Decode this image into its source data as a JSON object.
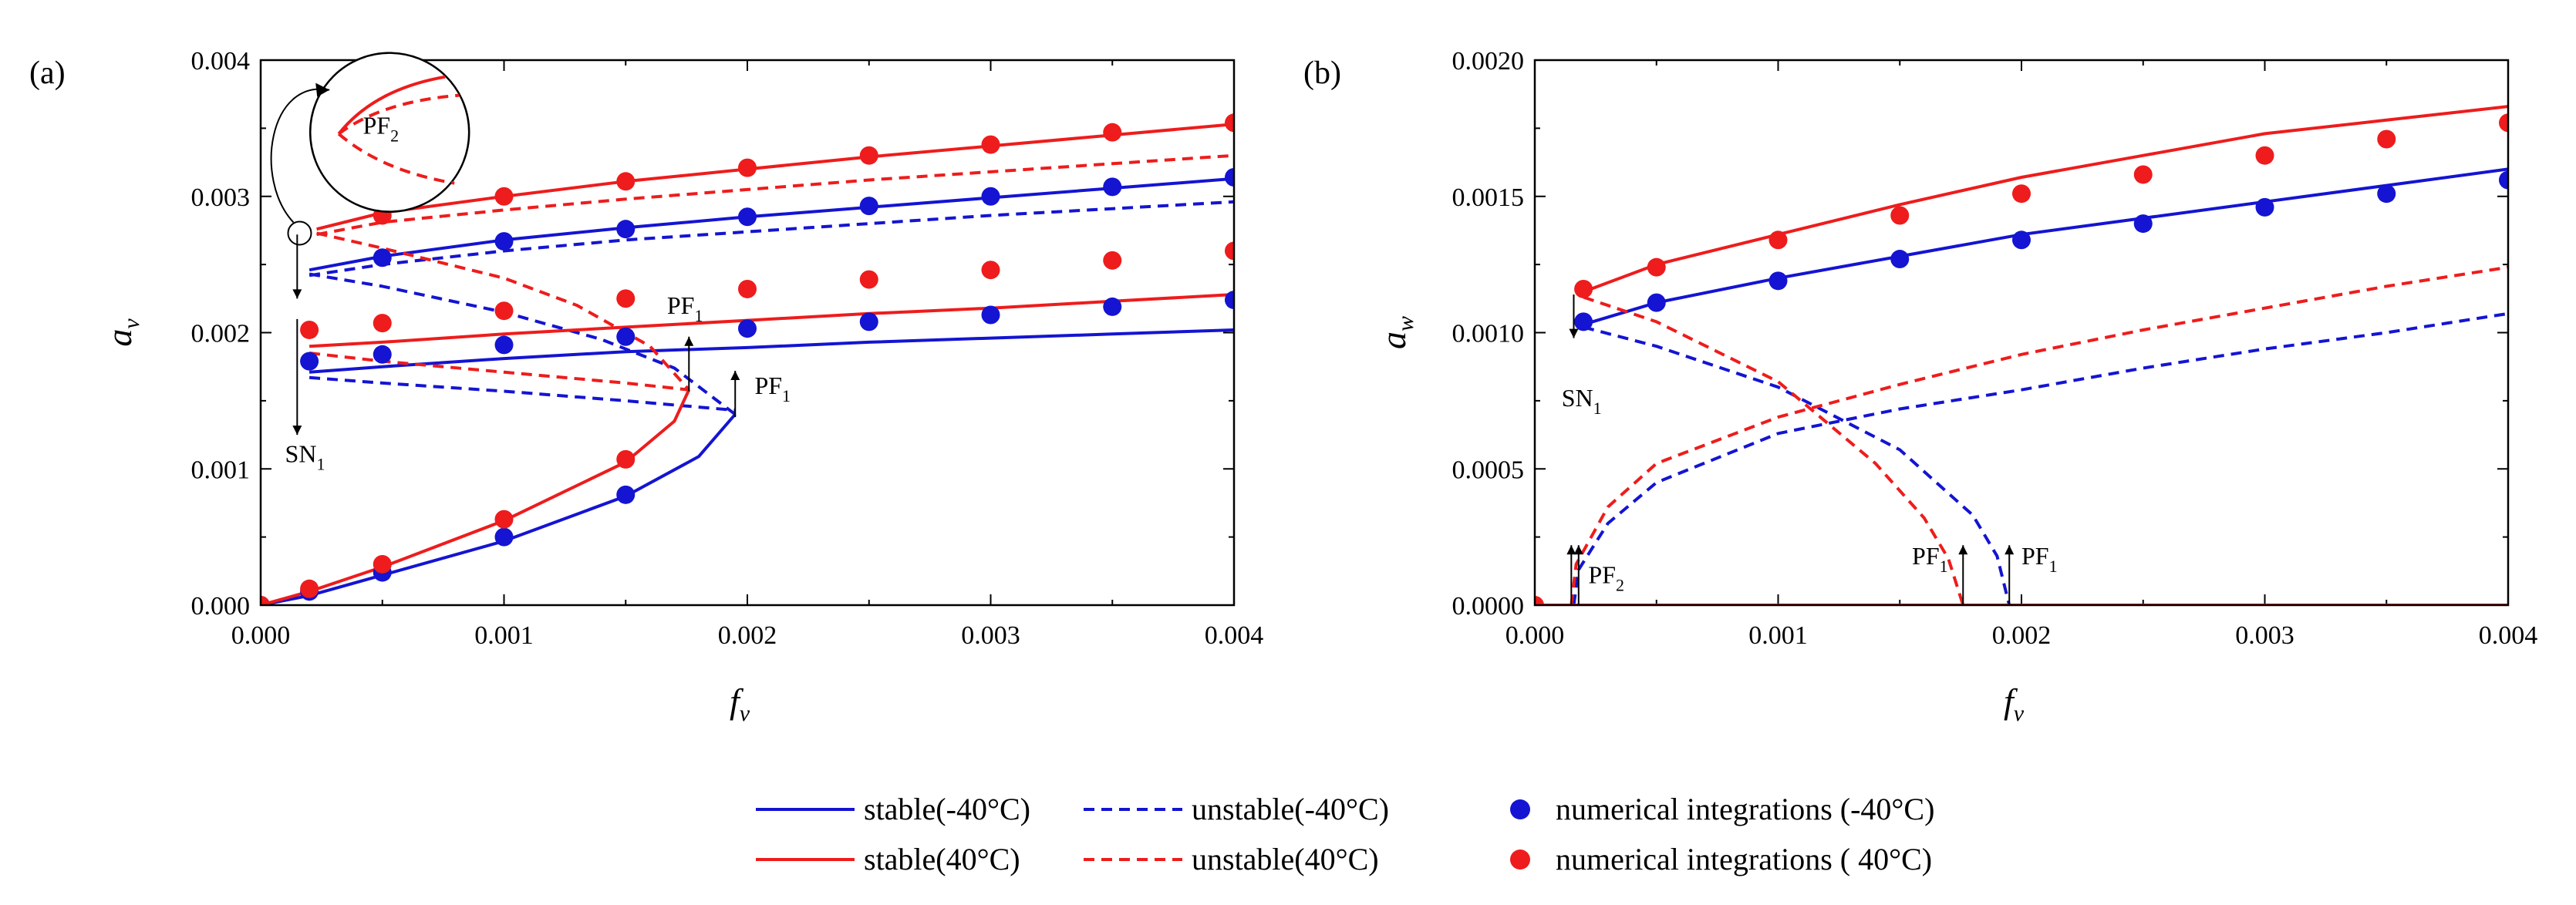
{
  "figure": {
    "colors": {
      "cold": "#1414d2",
      "hot": "#ee1c1c",
      "axis": "#000000"
    },
    "legend": {
      "items": [
        {
          "label": "stable(-40°C)",
          "kind": "solid",
          "color": "#1414d2"
        },
        {
          "label": "unstable(-40°C)",
          "kind": "dashed",
          "color": "#1414d2"
        },
        {
          "label": "numerical integrations (-40°C)",
          "kind": "marker",
          "color": "#1414d2"
        },
        {
          "label": "stable(40°C)",
          "kind": "solid",
          "color": "#ee1c1c"
        },
        {
          "label": "unstable(40°C)",
          "kind": "dashed",
          "color": "#ee1c1c"
        },
        {
          "label": "numerical integrations ( 40°C)",
          "kind": "marker",
          "color": "#ee1c1c"
        }
      ]
    }
  },
  "chart_data": [
    {
      "panel_label": "(a)",
      "type": "line",
      "xlabel": "f",
      "xlabel_sub": "v",
      "ylabel": "a",
      "ylabel_sub": "v",
      "xlim": [
        0,
        0.004
      ],
      "ylim": [
        0,
        0.004
      ],
      "x_ticks": [
        "0.000",
        "0.001",
        "0.002",
        "0.003",
        "0.004"
      ],
      "y_ticks": [
        "0.000",
        "0.001",
        "0.002",
        "0.003",
        "0.004"
      ],
      "annotations": [
        {
          "text": "PF",
          "sub": "2",
          "x": 0.00042,
          "y": 0.00346
        },
        {
          "text": "PF",
          "sub": "1",
          "x": 0.00167,
          "y": 0.00214
        },
        {
          "text": "PF",
          "sub": "1",
          "x": 0.00203,
          "y": 0.00155
        },
        {
          "text": "SN",
          "sub": "1",
          "x": 0.0001,
          "y": 0.00105
        }
      ],
      "series": [
        {
          "name": "stable(-40°C)",
          "temp": "cold",
          "style": "solid",
          "x": [
            0.0,
            0.0002,
            0.0005,
            0.001,
            0.0015,
            0.0018,
            0.00195
          ],
          "y": [
            0.0,
            7e-05,
            0.00022,
            0.00047,
            0.0008,
            0.00109,
            0.0014
          ]
        },
        {
          "name": "stable(-40°C)",
          "temp": "cold",
          "style": "solid",
          "x": [
            0.0002,
            0.0005,
            0.001,
            0.0015,
            0.002,
            0.0025,
            0.003,
            0.0035,
            0.004
          ],
          "y": [
            0.00171,
            0.00175,
            0.00181,
            0.00186,
            0.00189,
            0.00193,
            0.00196,
            0.00199,
            0.00202
          ]
        },
        {
          "name": "stable(-40°C)",
          "temp": "cold",
          "style": "solid",
          "x": [
            0.0002,
            0.0005,
            0.001,
            0.0015,
            0.002,
            0.0025,
            0.003,
            0.0035,
            0.004
          ],
          "y": [
            0.00246,
            0.00256,
            0.00268,
            0.00277,
            0.00285,
            0.00292,
            0.00299,
            0.00306,
            0.00313
          ]
        },
        {
          "name": "unstable(-40°C)",
          "temp": "cold",
          "style": "dashed",
          "x": [
            0.0002,
            0.0005,
            0.001,
            0.0015,
            0.002,
            0.0025,
            0.003,
            0.0035,
            0.004
          ],
          "y": [
            0.00242,
            0.0025,
            0.0026,
            0.00268,
            0.00274,
            0.0028,
            0.00286,
            0.00291,
            0.00296
          ]
        },
        {
          "name": "unstable(-40°C)",
          "temp": "cold",
          "style": "dashed",
          "x": [
            0.0002,
            0.0005,
            0.001,
            0.0014,
            0.0017,
            0.00195
          ],
          "y": [
            0.00243,
            0.00234,
            0.00215,
            0.00195,
            0.00174,
            0.0014
          ]
        },
        {
          "name": "unstable(-40°C)",
          "temp": "cold",
          "style": "dashed",
          "x": [
            0.0002,
            0.0005,
            0.001,
            0.0015,
            0.00195
          ],
          "y": [
            0.00167,
            0.00163,
            0.00157,
            0.0015,
            0.00143
          ]
        },
        {
          "name": "stable(40°C)",
          "temp": "hot",
          "style": "solid",
          "x": [
            0.0,
            0.0002,
            0.0005,
            0.001,
            0.0015,
            0.0017,
            0.00176
          ],
          "y": [
            0.0,
            0.0001,
            0.00028,
            0.00062,
            0.00105,
            0.00135,
            0.00158
          ]
        },
        {
          "name": "stable(40°C)",
          "temp": "hot",
          "style": "solid",
          "x": [
            0.0002,
            0.0005,
            0.001,
            0.0015,
            0.002,
            0.0025,
            0.003,
            0.0035,
            0.004
          ],
          "y": [
            0.0019,
            0.00193,
            0.00199,
            0.00204,
            0.00209,
            0.00214,
            0.00218,
            0.00223,
            0.00228
          ]
        },
        {
          "name": "stable(40°C)",
          "temp": "hot",
          "style": "solid",
          "x": [
            0.00023,
            0.0005,
            0.001,
            0.0015,
            0.002,
            0.0025,
            0.003,
            0.0035,
            0.004
          ],
          "y": [
            0.00276,
            0.00288,
            0.003,
            0.00311,
            0.0032,
            0.00329,
            0.00337,
            0.00345,
            0.00353
          ]
        },
        {
          "name": "unstable(40°C)",
          "temp": "hot",
          "style": "dashed",
          "x": [
            0.00023,
            0.0005,
            0.001,
            0.0015,
            0.002,
            0.0025,
            0.003,
            0.0035,
            0.004
          ],
          "y": [
            0.00272,
            0.00281,
            0.0029,
            0.00298,
            0.00305,
            0.00312,
            0.00318,
            0.00324,
            0.0033
          ]
        },
        {
          "name": "unstable(40°C)",
          "temp": "hot",
          "style": "dashed",
          "x": [
            0.00023,
            0.0005,
            0.001,
            0.0013,
            0.0016,
            0.00176
          ],
          "y": [
            0.00273,
            0.00262,
            0.0024,
            0.0022,
            0.0019,
            0.00158
          ]
        },
        {
          "name": "unstable(40°C)",
          "temp": "hot",
          "style": "dashed",
          "x": [
            0.0002,
            0.0005,
            0.001,
            0.0015,
            0.00176
          ],
          "y": [
            0.00185,
            0.00179,
            0.00171,
            0.00163,
            0.00158
          ]
        }
      ],
      "markers": [
        {
          "name": "numerical integrations (-40°C)",
          "temp": "cold",
          "x": [
            0.0,
            0.0002,
            0.0005,
            0.001,
            0.0015,
            0.0002,
            0.0005,
            0.001,
            0.0015,
            0.002,
            0.0025,
            0.003,
            0.0035,
            0.004,
            0.0005,
            0.001,
            0.0015,
            0.002,
            0.0025,
            0.003,
            0.0035,
            0.004
          ],
          "y": [
            0.0,
            0.0001,
            0.00024,
            0.0005,
            0.00081,
            0.00179,
            0.00184,
            0.00191,
            0.00197,
            0.00203,
            0.00208,
            0.00213,
            0.00219,
            0.00224,
            0.00255,
            0.00267,
            0.00276,
            0.00285,
            0.00293,
            0.003,
            0.00307,
            0.00314
          ]
        },
        {
          "name": "numerical integrations ( 40°C)",
          "temp": "hot",
          "x": [
            0.0,
            0.0002,
            0.0005,
            0.001,
            0.0015,
            0.0002,
            0.0005,
            0.001,
            0.0015,
            0.002,
            0.0025,
            0.003,
            0.0035,
            0.004,
            0.0005,
            0.001,
            0.0015,
            0.002,
            0.0025,
            0.003,
            0.0035,
            0.004
          ],
          "y": [
            0.0,
            0.00012,
            0.0003,
            0.00063,
            0.00107,
            0.00202,
            0.00207,
            0.00216,
            0.00225,
            0.00232,
            0.00239,
            0.00246,
            0.00253,
            0.0026,
            0.00286,
            0.003,
            0.00311,
            0.00321,
            0.0033,
            0.00338,
            0.00347,
            0.00354
          ]
        }
      ]
    },
    {
      "panel_label": "(b)",
      "type": "line",
      "xlabel": "f",
      "xlabel_sub": "v",
      "ylabel": "a",
      "ylabel_sub": "w",
      "xlim": [
        0,
        0.004
      ],
      "ylim": [
        0,
        0.002
      ],
      "x_ticks": [
        "0.000",
        "0.001",
        "0.002",
        "0.003",
        "0.004"
      ],
      "y_ticks": [
        "0.0000",
        "0.0005",
        "0.0010",
        "0.0015",
        "0.0020"
      ],
      "annotations": [
        {
          "text": "PF",
          "sub": "2",
          "x": 0.00022,
          "y": 8e-05
        },
        {
          "text": "PF",
          "sub": "1",
          "x": 0.00155,
          "y": 0.00015
        },
        {
          "text": "PF",
          "sub": "1",
          "x": 0.002,
          "y": 0.00015
        },
        {
          "text": "SN",
          "sub": "1",
          "x": 0.00011,
          "y": 0.00073
        }
      ],
      "series": [
        {
          "name": "stable(-40°C)",
          "temp": "cold",
          "style": "solid",
          "x": [
            0.0002,
            0.0005,
            0.001,
            0.0015,
            0.002,
            0.0025,
            0.003,
            0.0035,
            0.004
          ],
          "y": [
            0.00103,
            0.00111,
            0.0012,
            0.00128,
            0.00136,
            0.00142,
            0.00148,
            0.00154,
            0.0016
          ]
        },
        {
          "name": "unstable(-40°C)",
          "temp": "cold",
          "style": "dashed",
          "x": [
            0.0002,
            0.0005,
            0.001,
            0.0015,
            0.0018,
            0.0019,
            0.00195
          ],
          "y": [
            0.00102,
            0.00095,
            0.0008,
            0.00057,
            0.00033,
            0.00018,
            0.0
          ]
        },
        {
          "name": "unstable(-40°C)",
          "temp": "cold",
          "style": "dashed",
          "x": [
            0.00016,
            0.00018,
            0.0003,
            0.0005,
            0.001,
            0.0015,
            0.002,
            0.0025,
            0.003,
            0.0035,
            0.004
          ],
          "y": [
            0.0,
            0.00013,
            0.0003,
            0.00045,
            0.00063,
            0.00072,
            0.00079,
            0.00087,
            0.00094,
            0.001,
            0.00107
          ]
        },
        {
          "name": "stable(-40°C)",
          "temp": "cold",
          "style": "solid",
          "x": [
            0.0,
            0.004
          ],
          "y": [
            0.0,
            0.0
          ]
        },
        {
          "name": "stable(40°C)",
          "temp": "hot",
          "style": "solid",
          "x": [
            0.0002,
            0.0005,
            0.001,
            0.0015,
            0.002,
            0.0025,
            0.003,
            0.0035,
            0.004
          ],
          "y": [
            0.00115,
            0.00125,
            0.00136,
            0.00147,
            0.00157,
            0.00165,
            0.00173,
            0.00178,
            0.00183
          ]
        },
        {
          "name": "unstable(40°C)",
          "temp": "hot",
          "style": "dashed",
          "x": [
            0.0002,
            0.0005,
            0.001,
            0.0014,
            0.0016,
            0.0017,
            0.00176
          ],
          "y": [
            0.00113,
            0.00104,
            0.00082,
            0.00052,
            0.00032,
            0.00017,
            0.0
          ]
        },
        {
          "name": "unstable(40°C)",
          "temp": "hot",
          "style": "dashed",
          "x": [
            0.00015,
            0.00017,
            0.0003,
            0.0005,
            0.001,
            0.0015,
            0.002,
            0.0025,
            0.003,
            0.0035,
            0.004
          ],
          "y": [
            0.0,
            0.00015,
            0.00036,
            0.00052,
            0.00069,
            0.00081,
            0.00092,
            0.00101,
            0.00109,
            0.00117,
            0.00124
          ]
        },
        {
          "name": "stable(40°C)",
          "temp": "hot",
          "style": "solid",
          "x": [
            0.0,
            0.004
          ],
          "y": [
            0.0,
            0.0
          ]
        }
      ],
      "markers": [
        {
          "name": "numerical integrations (-40°C)",
          "temp": "cold",
          "x": [
            0.0002,
            0.0005,
            0.001,
            0.0015,
            0.002,
            0.0025,
            0.003,
            0.0035,
            0.004
          ],
          "y": [
            0.00104,
            0.00111,
            0.00119,
            0.00127,
            0.00134,
            0.0014,
            0.00146,
            0.00151,
            0.00156
          ]
        },
        {
          "name": "numerical integrations ( 40°C)",
          "temp": "hot",
          "x": [
            0.0,
            0.0002,
            0.0005,
            0.001,
            0.0015,
            0.002,
            0.0025,
            0.003,
            0.0035,
            0.004
          ],
          "y": [
            0.0,
            0.00116,
            0.00124,
            0.00134,
            0.00143,
            0.00151,
            0.00158,
            0.00165,
            0.00171,
            0.00177
          ]
        }
      ]
    }
  ]
}
